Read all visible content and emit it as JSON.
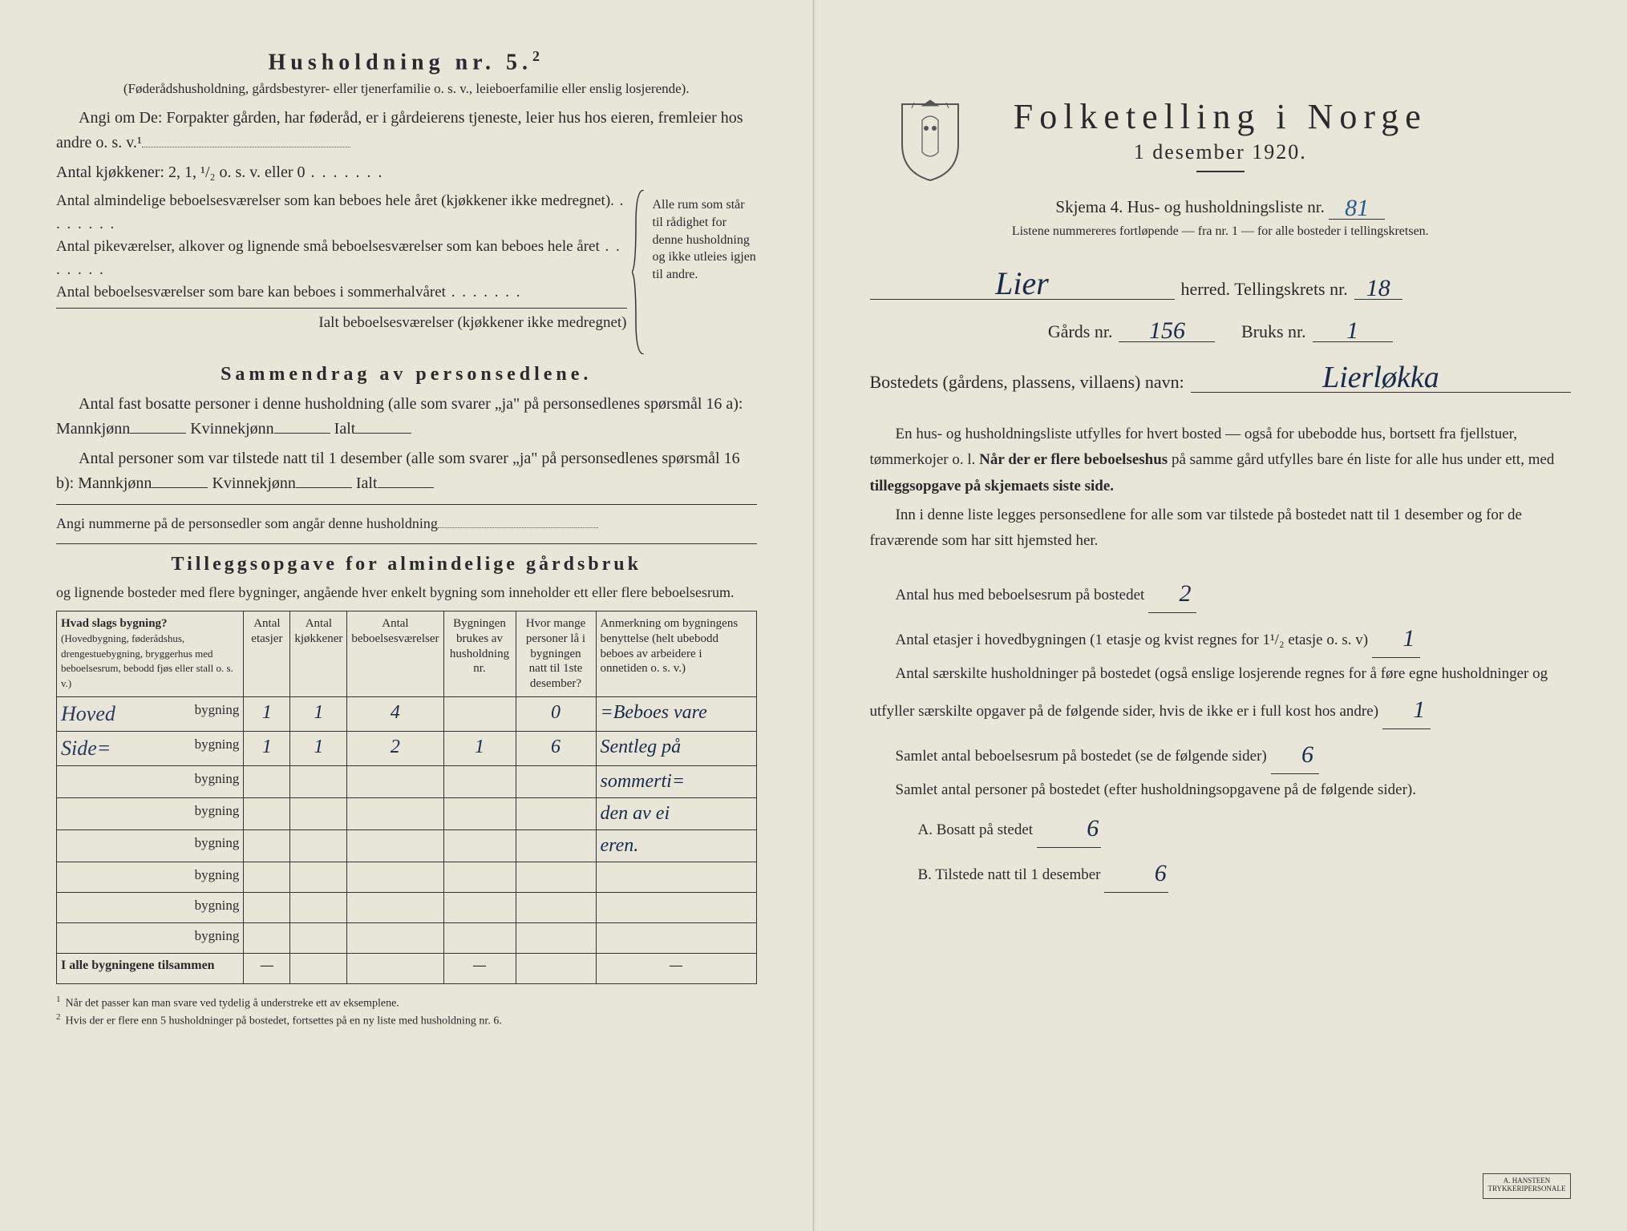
{
  "left": {
    "husholdning_title": "Husholdning nr. 5.",
    "husholdning_sup": "2",
    "husholdning_note": "(Føderådshusholdning, gårdsbestyrer- eller tjenerfamilie o. s. v., leieboerfamilie eller enslig losjerende).",
    "angi_line": "Angi om De: Forpakter gården, har føderåd, er i gårdeierens tjeneste, leier hus hos eieren, fremleier hos andre o. s. v.¹",
    "kjokkener_line": "Antal kjøkkener: 2, 1, ¹/₂ o. s. v. eller 0",
    "brace_lines": [
      "Antal almindelige beboelsesværelser som kan beboes hele året (kjøkkener ikke medregnet).",
      "Antal pikeværelser, alkover og lignende små beboelsesværelser som kan beboes hele året",
      "Antal beboelsesværelser som bare kan beboes i sommerhalvåret",
      "Ialt beboelsesværelser (kjøkkener ikke medregnet)"
    ],
    "brace_right": "Alle rum som står til rådighet for denne husholdning og ikke utleies igjen til andre.",
    "sammendrag_title": "Sammendrag av personsedlene.",
    "sammendrag_p1": "Antal fast bosatte personer i denne husholdning (alle som svarer „ja\" på personsedlenes spørsmål 16 a): Mannkjønn",
    "sammendrag_kv": "Kvinnekjønn",
    "sammendrag_ialt": "Ialt",
    "sammendrag_p2": "Antal personer som var tilstede natt til 1 desember (alle som svarer „ja\" på personsedlenes spørsmål 16 b): Mannkjønn",
    "angi_nummerne": "Angi nummerne på de personsedler som angår denne husholdning",
    "tillegg_title": "Tilleggsopgave for almindelige gårdsbruk",
    "tillegg_sub": "og lignende bosteder med flere bygninger, angående hver enkelt bygning som inneholder ett eller flere beboelsesrum.",
    "table": {
      "headers": {
        "hvad": "Hvad slags bygning?",
        "hvad_sub": "(Hovedbygning, føderådshus, drengestuebygning, bryggerhus med beboelsesrum, bebodd fjøs eller stall o. s. v.)",
        "etasjer": "Antal etasjer",
        "kjokken": "Antal kjøkkener",
        "beboels": "Antal beboelsesværelser",
        "brukes": "Bygningen brukes av husholdning nr.",
        "hvor": "Hvor mange personer lå i bygningen natt til 1ste desember?",
        "anm": "Anmerkning om bygningens benyttelse (helt ubebodd beboes av arbeidere i onnetiden o. s. v.)"
      },
      "rows": [
        {
          "prefix": "Hoved",
          "label": "bygning",
          "etasjer": "1",
          "kjokken": "1",
          "beboels": "4",
          "brukes": "",
          "hvor": "0",
          "anm": "=Beboes vare"
        },
        {
          "prefix": "Side=",
          "label": "bygning",
          "etasjer": "1",
          "kjokken": "1",
          "beboels": "2",
          "brukes": "1",
          "hvor": "6",
          "anm": "Sentleg på"
        },
        {
          "prefix": "",
          "label": "bygning",
          "etasjer": "",
          "kjokken": "",
          "beboels": "",
          "brukes": "",
          "hvor": "",
          "anm": "sommerti="
        },
        {
          "prefix": "",
          "label": "bygning",
          "etasjer": "",
          "kjokken": "",
          "beboels": "",
          "brukes": "",
          "hvor": "",
          "anm": "den av ei"
        },
        {
          "prefix": "",
          "label": "bygning",
          "etasjer": "",
          "kjokken": "",
          "beboels": "",
          "brukes": "",
          "hvor": "",
          "anm": "eren."
        },
        {
          "prefix": "",
          "label": "bygning",
          "etasjer": "",
          "kjokken": "",
          "beboels": "",
          "brukes": "",
          "hvor": "",
          "anm": ""
        },
        {
          "prefix": "",
          "label": "bygning",
          "etasjer": "",
          "kjokken": "",
          "beboels": "",
          "brukes": "",
          "hvor": "",
          "anm": ""
        },
        {
          "prefix": "",
          "label": "bygning",
          "etasjer": "",
          "kjokken": "",
          "beboels": "",
          "brukes": "",
          "hvor": "",
          "anm": ""
        }
      ],
      "footer": "I alle bygningene tilsammen"
    },
    "footnotes": [
      "Når det passer kan man svare ved tydelig å understreke ett av eksemplene.",
      "Hvis der er flere enn 5 husholdninger på bostedet, fortsettes på en ny liste med husholdning nr. 6."
    ]
  },
  "right": {
    "title": "Folketelling i Norge",
    "date": "1 desember 1920.",
    "skjema": "Skjema 4.  Hus- og husholdningsliste nr.",
    "skjema_nr": "81",
    "listene": "Listene nummereres fortløpende — fra nr. 1 — for alle bosteder i tellingskretsen.",
    "herred_value": "Lier",
    "herred_label": "herred.  Tellingskrets nr.",
    "tellingskrets_nr": "18",
    "gards_label": "Gårds nr.",
    "gards_nr": "156",
    "bruks_label": "Bruks nr.",
    "bruks_nr": "1",
    "bosted_label": "Bostedets (gårdens, plassens, villaens) navn:",
    "bosted_value": "Lierløkka",
    "p1": "En hus- og husholdningsliste utfylles for hvert bosted — også for ubebodde hus, bortsett fra fjellstuer, tømmerkojer o. l.",
    "p1b": "Når der er flere beboelseshus",
    "p1c": "på samme gård utfylles bare én liste for alle hus under ett, med",
    "p1d": "tilleggsopgave på skjemaets siste side.",
    "p2": "Inn i denne liste legges personsedlene for alle som var tilstede på bostedet natt til 1 desember og for de fraværende som har sitt hjemsted her.",
    "antal_hus_label": "Antal hus med beboelsesrum på bostedet",
    "antal_hus_value": "2",
    "antal_etasjer_label": "Antal etasjer i hovedbygningen (1 etasje og kvist regnes for 1¹/₂ etasje o. s. v)",
    "antal_etasjer_value": "1",
    "antal_hush_label": "Antal særskilte husholdninger på bostedet (også enslige losjerende regnes for å føre egne husholdninger og utfyller særskilte opgaver på de følgende sider, hvis de ikke er i full kost hos andre)",
    "antal_hush_value": "1",
    "samlet_rum_label": "Samlet antal beboelsesrum på bostedet (se de følgende sider)",
    "samlet_rum_value": "6",
    "samlet_pers_label": "Samlet antal personer på bostedet (efter husholdningsopgavene på de følgende sider).",
    "bosatt_label": "A.  Bosatt på stedet",
    "bosatt_value": "6",
    "tilstede_label": "B.  Tilstede natt til 1 desember",
    "tilstede_value": "6",
    "stamp": "A. HANSTEEN TRYKKERIPERSONALE"
  },
  "colors": {
    "paper": "#e8e6d8",
    "ink": "#2a2a2a",
    "hand_blue": "#2a5a8a",
    "hand_dark": "#1a2a4a"
  }
}
